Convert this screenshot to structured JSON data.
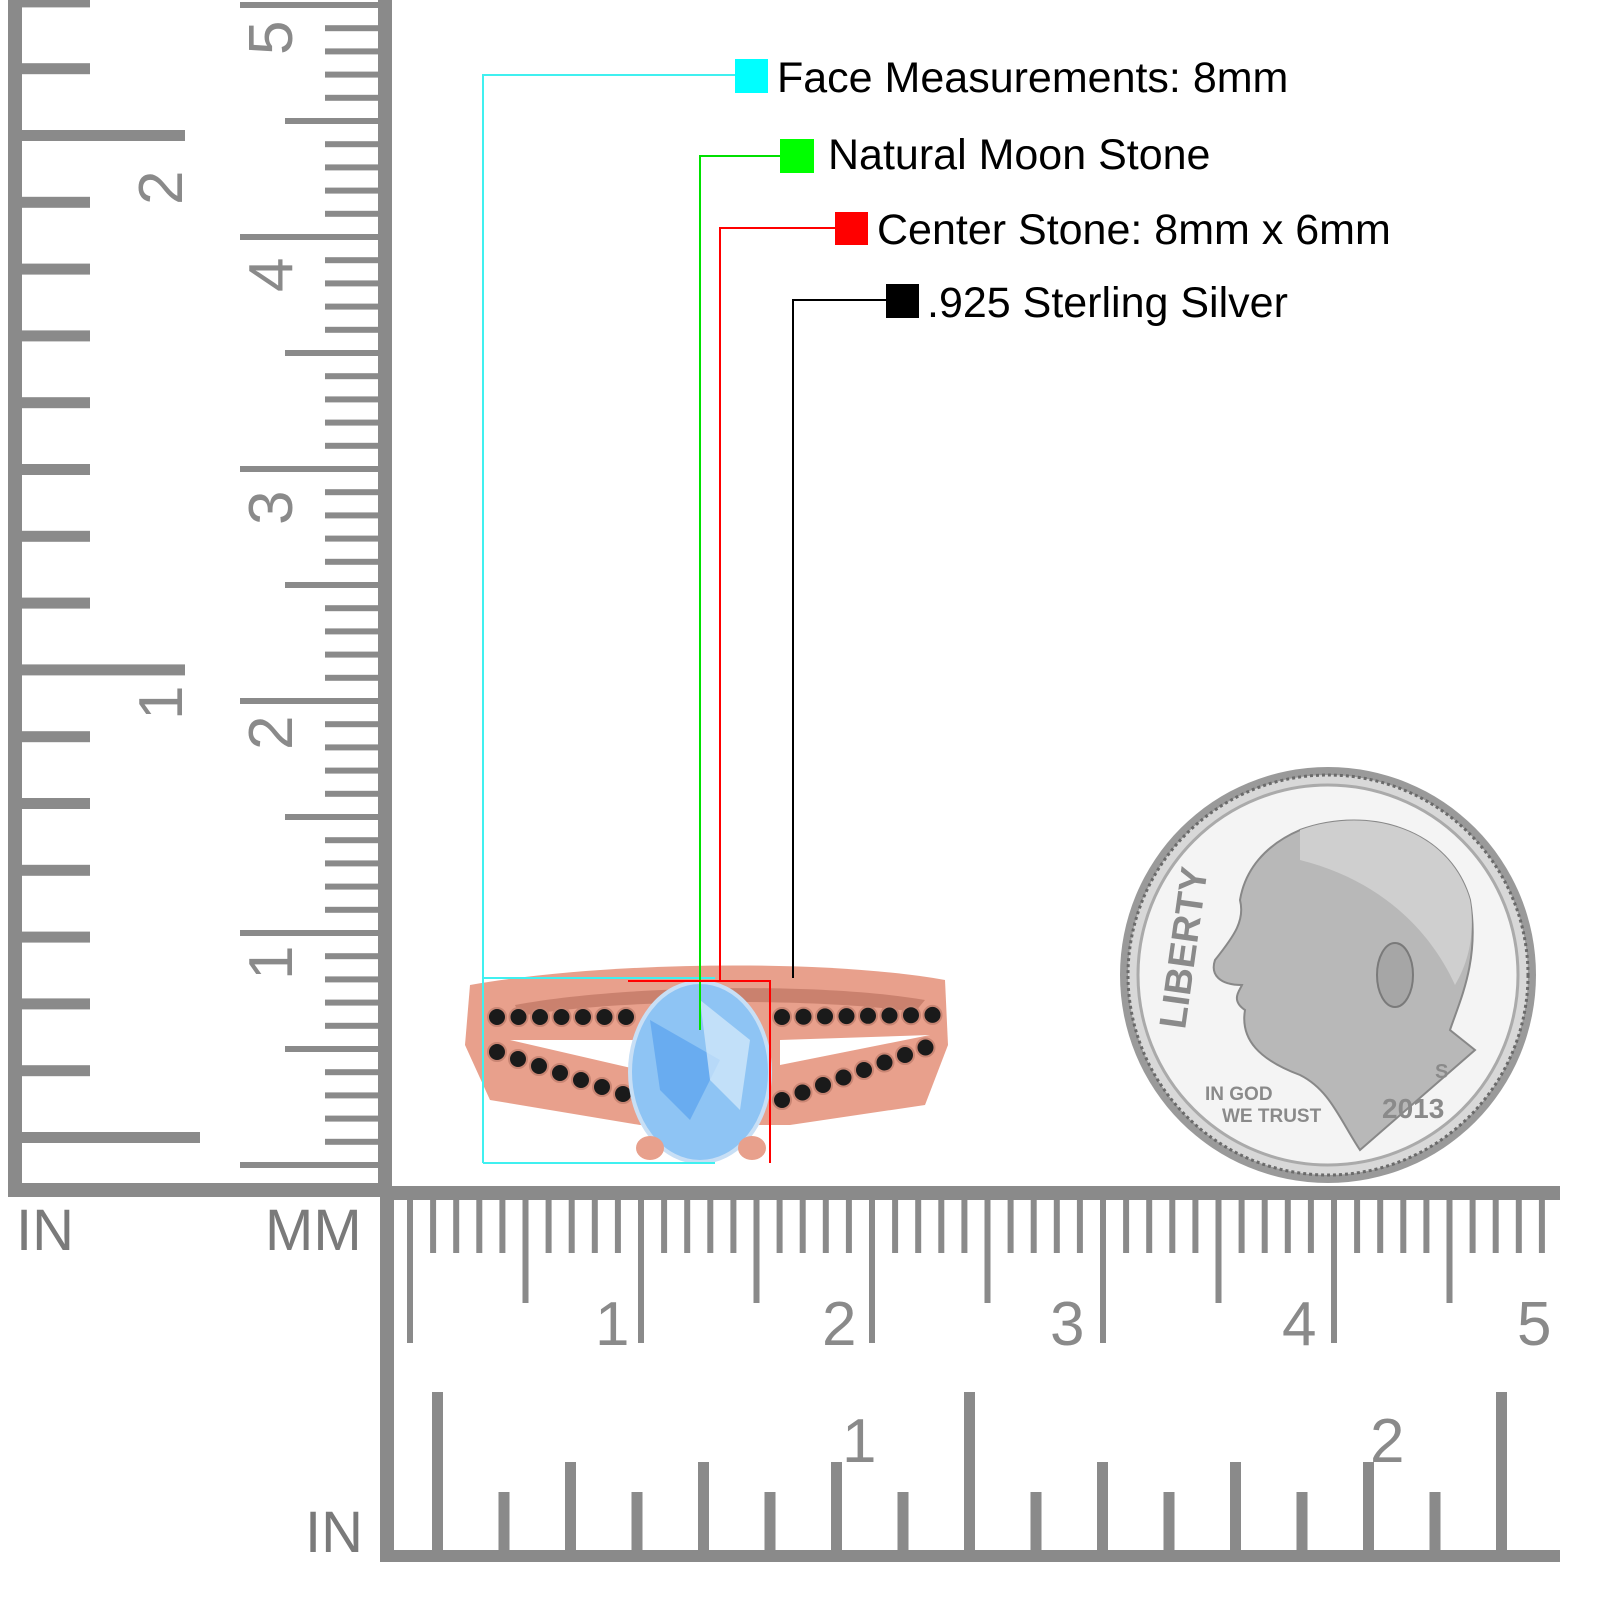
{
  "annotations": [
    {
      "text": "Face Measurements: 8mm",
      "color": "#00ffff"
    },
    {
      "text": "Natural Moon Stone",
      "color": "#00ff00"
    },
    {
      "text": "Center Stone: 8mm x 6mm",
      "color": "#ff0000"
    },
    {
      "text": ".925 Sterling Silver",
      "color": "#000000"
    }
  ],
  "rulers": {
    "left": {
      "inch_label": "IN",
      "mm_label": "MM",
      "inch_numbers": [
        "1",
        "2"
      ],
      "cm_numbers": [
        "1",
        "2",
        "3",
        "4",
        "5"
      ]
    },
    "bottom": {
      "inch_label": "IN",
      "cm_numbers": [
        "1",
        "2",
        "3",
        "4",
        "5"
      ],
      "inch_numbers": [
        "1",
        "2"
      ]
    },
    "color": "#8a8a8a"
  },
  "coin": {
    "motto_top": "LIBERTY",
    "motto_line1": "IN GOD",
    "motto_line2": "WE TRUST",
    "mint_mark": "S",
    "year": "2013"
  },
  "ring": {
    "metal_color": "#e8a08c",
    "stone_color": "#8ec4f4",
    "accent_stone_color": "#1a1a1a"
  }
}
